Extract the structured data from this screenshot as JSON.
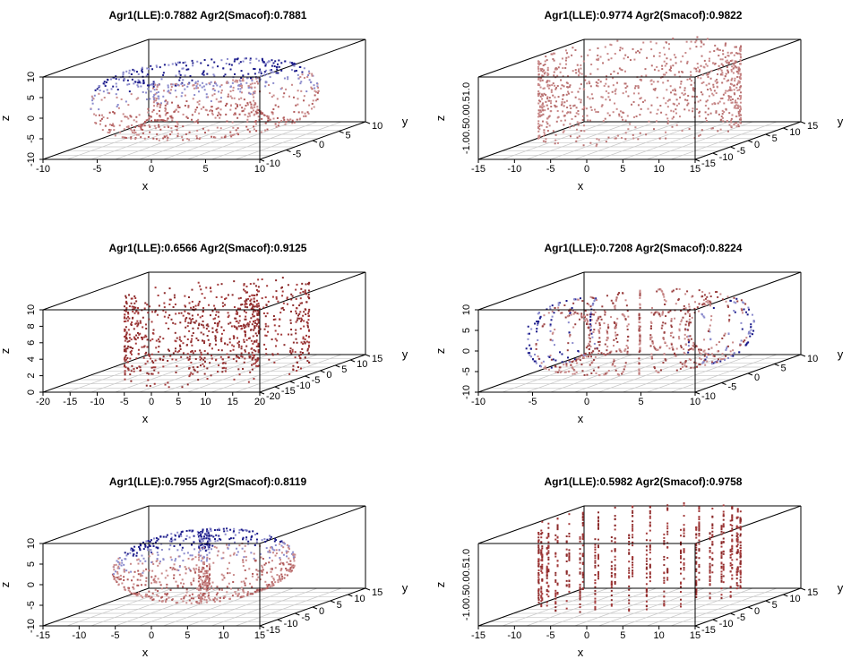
{
  "chart_data": [
    {
      "type": "scatter",
      "title": "Agr1(LLE):0.7882 Agr2(Smacof):0.7881",
      "xlabel": "x",
      "ylabel": "y",
      "zlabel": "z",
      "xlim": [
        -10,
        10
      ],
      "ylim": [
        -10,
        10
      ],
      "zlim": [
        -10,
        10
      ],
      "x_ticks": [
        "-10",
        "-5",
        "0",
        "5",
        "10"
      ],
      "y_ticks": [
        "-10",
        "-5",
        "0",
        "5",
        "10"
      ],
      "z_ticks": [
        "-10",
        "-5",
        "0",
        "5",
        "10"
      ],
      "shape": "torus",
      "coloring": "mixed",
      "colors": [
        "#b05a5a",
        "#c98a8a",
        "#8a8acc",
        "#1a1a8a"
      ]
    },
    {
      "type": "scatter",
      "title": "Agr1(LLE):0.9774 Agr2(Smacof):0.9822",
      "xlabel": "x",
      "ylabel": "y",
      "zlabel": "z",
      "xlim": [
        -15,
        15
      ],
      "ylim": [
        -15,
        15
      ],
      "zlim": [
        -1,
        1
      ],
      "x_ticks": [
        "-15",
        "-10",
        "-5",
        "0",
        "5",
        "10",
        "15"
      ],
      "y_ticks": [
        "-15",
        "-10",
        "-5",
        "0",
        "5",
        "10",
        "15"
      ],
      "z_ticks": [
        "-1.0",
        "0.0",
        "0.5",
        "1.0"
      ],
      "z_tick_text": "-1.00.50.00.51.0",
      "shape": "cylinder",
      "coloring": "light-red",
      "colors": [
        "#c98a8a",
        "#b87070"
      ]
    },
    {
      "type": "scatter",
      "title": "Agr1(LLE):0.6566 Agr2(Smacof):0.9125",
      "xlabel": "x",
      "ylabel": "y",
      "zlabel": "z",
      "xlim": [
        -20,
        15
      ],
      "ylim": [
        -20,
        15
      ],
      "zlim": [
        0,
        10
      ],
      "x_ticks": [
        "-20",
        "-15",
        "-10",
        "-5",
        "0",
        "5",
        "10",
        "15",
        "20"
      ],
      "y_ticks": [
        "-20",
        "-15",
        "-10",
        "-5",
        "0",
        "5",
        "10",
        "15"
      ],
      "z_ticks": [
        "0",
        "2",
        "4",
        "6",
        "8",
        "10"
      ],
      "shape": "swissroll",
      "coloring": "dark-red",
      "colors": [
        "#8b2a2a",
        "#a33a3a"
      ]
    },
    {
      "type": "scatter",
      "title": "Agr1(LLE):0.7208 Agr2(Smacof):0.8224",
      "xlabel": "x",
      "ylabel": "y",
      "zlabel": "z",
      "xlim": [
        -10,
        10
      ],
      "ylim": [
        -10,
        10
      ],
      "zlim": [
        -10,
        10
      ],
      "x_ticks": [
        "-10",
        "-5",
        "0",
        "5",
        "10"
      ],
      "y_ticks": [
        "-10",
        "-5",
        "0",
        "5",
        "10"
      ],
      "z_ticks": [
        "-10",
        "-5",
        "0",
        "5",
        "10"
      ],
      "shape": "torus-rings",
      "coloring": "red-blue-ends",
      "colors": [
        "#9a4040",
        "#c98a8a",
        "#8a8acc",
        "#1a1a8a"
      ]
    },
    {
      "type": "scatter",
      "title": "Agr1(LLE):0.7955 Agr2(Smacof):0.8119",
      "xlabel": "x",
      "ylabel": "y",
      "zlabel": "z",
      "xlim": [
        -15,
        15
      ],
      "ylim": [
        -15,
        15
      ],
      "zlim": [
        -10,
        10
      ],
      "x_ticks": [
        "-15",
        "-10",
        "-5",
        "0",
        "5",
        "10",
        "15"
      ],
      "y_ticks": [
        "-15",
        "-10",
        "-5",
        "0",
        "5",
        "10",
        "15"
      ],
      "z_ticks": [
        "-10",
        "-5",
        "0",
        "5",
        "10"
      ],
      "shape": "sphere",
      "coloring": "mixed",
      "colors": [
        "#b05a5a",
        "#c98a8a",
        "#8a8acc",
        "#1a1a8a"
      ]
    },
    {
      "type": "scatter",
      "title": "Agr1(LLE):0.5982 Agr2(Smacof):0.9758",
      "xlabel": "x",
      "ylabel": "y",
      "zlabel": "z",
      "xlim": [
        -15,
        15
      ],
      "ylim": [
        -15,
        15
      ],
      "zlim": [
        -1,
        1
      ],
      "x_ticks": [
        "-15",
        "-10",
        "-5",
        "0",
        "5",
        "10",
        "15"
      ],
      "y_ticks": [
        "-15",
        "-10",
        "-5",
        "0",
        "5",
        "10",
        "15"
      ],
      "z_ticks": [
        "-1.0",
        "0.0",
        "0.5",
        "1.0"
      ],
      "z_tick_text": "-1.00.50.00.51.0",
      "shape": "cylinder-rings",
      "coloring": "dark-red",
      "colors": [
        "#8b2a2a",
        "#a33a3a"
      ]
    }
  ]
}
